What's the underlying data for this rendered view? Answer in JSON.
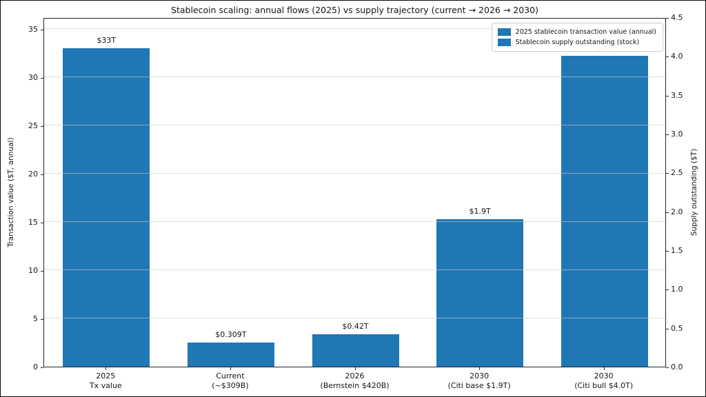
{
  "chart_data": {
    "type": "bar",
    "title": "Stablecoin scaling: annual flows (2025) vs supply trajectory (current → 2026 → 2030)",
    "ylabel_left": "Transaction value ($T, annual)",
    "ylabel_right": "Supply outstanding ($T)",
    "categories": [
      "2025\nTx value",
      "Current\n(~$309B)",
      "2026\n(Bernstein $420B)",
      "2030\n(Citi base $1.9T)",
      "2030\n(Citi bull $4.0T)"
    ],
    "series": [
      {
        "name": "2025 stablecoin transaction value (annual)",
        "axis": "left",
        "points": [
          {
            "category_index": 0,
            "value": 33,
            "label": "$33T"
          }
        ]
      },
      {
        "name": "Stablecoin supply outstanding (stock)",
        "axis": "right",
        "points": [
          {
            "category_index": 1,
            "value": 0.309,
            "label": "$0.309T"
          },
          {
            "category_index": 2,
            "value": 0.42,
            "label": "$0.42T"
          },
          {
            "category_index": 3,
            "value": 1.9,
            "label": "$1.9T"
          },
          {
            "category_index": 4,
            "value": 4.0,
            "label": "$4T"
          }
        ]
      }
    ],
    "left_axis": {
      "ticks": [
        0,
        5,
        10,
        15,
        20,
        25,
        30,
        35
      ],
      "ylim": [
        0,
        36.2
      ]
    },
    "right_axis": {
      "ticks": [
        "0.0",
        "0.5",
        "1.0",
        "1.5",
        "2.0",
        "2.5",
        "3.0",
        "3.5",
        "4.0",
        "4.5"
      ],
      "ylim": [
        0,
        4.5
      ]
    },
    "bar_color": "#1f77b4",
    "grid": true,
    "legend_position": "upper right"
  }
}
